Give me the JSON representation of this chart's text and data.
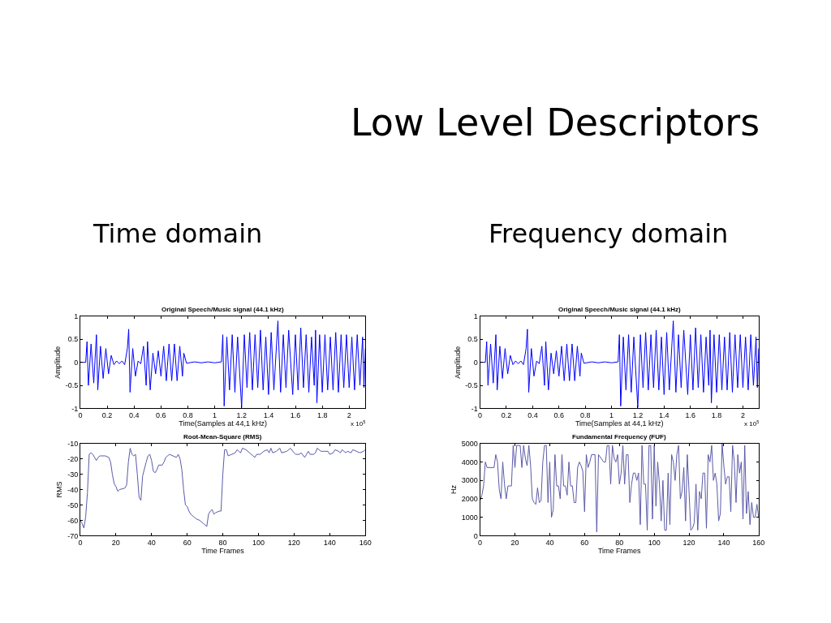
{
  "chart_data": [
    {
      "type": "line",
      "title": "Original Speech/Music signal (44.1 kHz)",
      "xlabel": "Time(Samples at 44,1 kHz)",
      "ylabel": "Amplitude",
      "color": "#0000ff",
      "annotations": [
        "x 10$^{5}$",
        "Low Level Descriptors",
        "Time domain"
      ],
      "x": [
        0,
        0.04,
        0.05,
        0.06,
        0.08,
        0.1,
        0.12,
        0.13,
        0.15,
        0.17,
        0.19,
        0.21,
        0.23,
        0.25,
        0.27,
        0.29,
        0.31,
        0.33,
        0.35,
        0.36,
        0.37,
        0.39,
        0.41,
        0.43,
        0.45,
        0.47,
        0.49,
        0.5,
        0.52,
        0.54,
        0.56,
        0.58,
        0.6,
        0.62,
        0.64,
        0.66,
        0.68,
        0.7,
        0.72,
        0.74,
        0.76,
        0.77,
        0.79,
        0.85,
        0.9,
        0.95,
        1.0,
        1.05,
        1.06,
        1.07,
        1.09,
        1.11,
        1.13,
        1.15,
        1.17,
        1.2,
        1.22,
        1.24,
        1.26,
        1.28,
        1.3,
        1.32,
        1.34,
        1.36,
        1.38,
        1.4,
        1.42,
        1.44,
        1.47,
        1.49,
        1.51,
        1.53,
        1.55,
        1.58,
        1.6,
        1.62,
        1.64,
        1.66,
        1.68,
        1.7,
        1.72,
        1.74,
        1.75,
        1.76,
        1.78,
        1.8,
        1.82,
        1.84,
        1.86,
        1.88,
        1.9,
        1.92,
        1.94,
        1.96,
        1.98,
        2.0,
        2.02,
        2.04,
        2.06,
        2.08,
        2.1,
        2.11,
        2.12
      ],
      "values": [
        0,
        0,
        0.45,
        -0.5,
        0.4,
        -0.45,
        0.6,
        -0.6,
        0.35,
        -0.35,
        0.3,
        -0.25,
        0.15,
        -0.05,
        0.03,
        -0.03,
        0.03,
        -0.05,
        0.3,
        0.72,
        -0.65,
        0.3,
        -0.3,
        0.03,
        -0.03,
        0.35,
        -0.5,
        0.45,
        -0.6,
        0.2,
        -0.25,
        0.25,
        -0.3,
        0.35,
        -0.4,
        0.4,
        -0.4,
        0.4,
        -0.4,
        0.35,
        -0.3,
        0.2,
        -0.02,
        0.01,
        -0.01,
        0.01,
        -0.01,
        0.01,
        0.6,
        -0.95,
        0.55,
        -0.6,
        0.6,
        -0.65,
        0.55,
        -0.98,
        0.6,
        -0.55,
        0.65,
        -0.6,
        0.6,
        -0.55,
        0.7,
        -0.6,
        0.55,
        -0.7,
        0.65,
        -0.6,
        0.9,
        -0.65,
        0.6,
        -0.55,
        0.7,
        -0.7,
        0.6,
        -0.6,
        0.75,
        -0.55,
        0.6,
        -0.65,
        0.55,
        -0.5,
        0.7,
        -0.88,
        0.6,
        -0.65,
        0.6,
        -0.6,
        0.55,
        -0.6,
        0.65,
        -0.65,
        0.6,
        -0.55,
        0.6,
        -0.55,
        0.55,
        -0.6,
        0.6,
        -0.5,
        0.55,
        -0.55,
        0.3
      ],
      "xlim": [
        0,
        2.12
      ],
      "xticks": [
        0,
        0.2,
        0.4,
        0.6,
        0.8,
        1,
        1.2,
        1.4,
        1.6,
        1.8,
        2
      ],
      "ylim": [
        -1,
        1
      ],
      "yticks": [
        -1,
        -0.5,
        0,
        0.5,
        1
      ]
    },
    {
      "type": "line",
      "title": "Root-Mean-Square (RMS)",
      "xlabel": "Time Frames",
      "ylabel": "RMS",
      "color": "#5a5aa8",
      "x": [
        0,
        1,
        2,
        3,
        4,
        5,
        6,
        7,
        8,
        9,
        10,
        11,
        12,
        14,
        16,
        17,
        18,
        19,
        20,
        21,
        22,
        25,
        26,
        27,
        28,
        29,
        30,
        31,
        32,
        33,
        34,
        35,
        37,
        38,
        39,
        40,
        41,
        42,
        43,
        44,
        46,
        47,
        48,
        50,
        52,
        54,
        55,
        56,
        57,
        58,
        59,
        60,
        61,
        62,
        64,
        65,
        67,
        69,
        71,
        72,
        73,
        74,
        75,
        76,
        78,
        79,
        80,
        81,
        82,
        83,
        85,
        87,
        88,
        89,
        90,
        91,
        93,
        95,
        97,
        98,
        99,
        101,
        103,
        105,
        106,
        107,
        108,
        110,
        112,
        113,
        116,
        118,
        120,
        121,
        123,
        124,
        126,
        127,
        128,
        129,
        131,
        132,
        133,
        135,
        137,
        139,
        140,
        142,
        143,
        145,
        146,
        147,
        149,
        150,
        152,
        153,
        155,
        157,
        159,
        160
      ],
      "values": [
        -60,
        -62,
        -65,
        -58,
        -42,
        -17,
        -16,
        -17,
        -19,
        -21,
        -19,
        -18,
        -18,
        -18,
        -19,
        -22,
        -30,
        -36,
        -38,
        -41,
        -40,
        -39,
        -37,
        -22,
        -13,
        -17,
        -18,
        -17,
        -30,
        -45,
        -47,
        -31,
        -22,
        -18,
        -17,
        -21,
        -28,
        -29,
        -27,
        -24,
        -24,
        -22,
        -19,
        -17,
        -18,
        -19,
        -17,
        -20,
        -27,
        -40,
        -50,
        -51,
        -54,
        -56,
        -58,
        -59,
        -60,
        -62,
        -64,
        -56,
        -54,
        -53,
        -56,
        -55,
        -54,
        -54,
        -30,
        -14,
        -14,
        -18,
        -17,
        -16,
        -14,
        -15,
        -16,
        -13,
        -14,
        -16,
        -18,
        -19,
        -17,
        -17,
        -15,
        -14,
        -16,
        -13,
        -16,
        -15,
        -13,
        -16,
        -15,
        -13,
        -16,
        -17,
        -17,
        -16,
        -19,
        -17,
        -15,
        -17,
        -17,
        -16,
        -13,
        -15,
        -15,
        -15,
        -17,
        -16,
        -14,
        -15,
        -16,
        -14,
        -16,
        -15,
        -16,
        -14,
        -15,
        -16,
        -15,
        -14
      ],
      "xlim": [
        0,
        160
      ],
      "xticks": [
        0,
        20,
        40,
        60,
        80,
        100,
        120,
        140,
        160
      ],
      "ylim": [
        -70,
        -10
      ],
      "yticks": [
        -70,
        -60,
        -50,
        -40,
        -30,
        -20,
        -10
      ]
    },
    {
      "type": "line",
      "title": "Original Speech/Music signal (44.1 kHz)",
      "xlabel": "Time(Samples at 44,1 kHz)",
      "ylabel": "Amplitude",
      "color": "#0000ff",
      "annotations": [
        "x 10$^{5}$",
        "Frequency domain"
      ],
      "x": [
        0,
        0.04,
        0.05,
        0.06,
        0.08,
        0.1,
        0.12,
        0.13,
        0.15,
        0.17,
        0.19,
        0.21,
        0.23,
        0.25,
        0.27,
        0.29,
        0.31,
        0.33,
        0.35,
        0.36,
        0.37,
        0.39,
        0.41,
        0.43,
        0.45,
        0.47,
        0.49,
        0.5,
        0.52,
        0.54,
        0.56,
        0.58,
        0.6,
        0.62,
        0.64,
        0.66,
        0.68,
        0.7,
        0.72,
        0.74,
        0.76,
        0.77,
        0.79,
        0.85,
        0.9,
        0.95,
        1.0,
        1.05,
        1.06,
        1.07,
        1.09,
        1.11,
        1.13,
        1.15,
        1.17,
        1.2,
        1.22,
        1.24,
        1.26,
        1.28,
        1.3,
        1.32,
        1.34,
        1.36,
        1.38,
        1.4,
        1.42,
        1.44,
        1.47,
        1.49,
        1.51,
        1.53,
        1.55,
        1.58,
        1.6,
        1.62,
        1.64,
        1.66,
        1.68,
        1.7,
        1.72,
        1.74,
        1.75,
        1.76,
        1.78,
        1.8,
        1.82,
        1.84,
        1.86,
        1.88,
        1.9,
        1.92,
        1.94,
        1.96,
        1.98,
        2.0,
        2.02,
        2.04,
        2.06,
        2.08,
        2.1,
        2.11,
        2.12
      ],
      "values": [
        0,
        0,
        0.45,
        -0.5,
        0.4,
        -0.45,
        0.6,
        -0.6,
        0.35,
        -0.35,
        0.3,
        -0.25,
        0.15,
        -0.05,
        0.03,
        -0.03,
        0.03,
        -0.05,
        0.3,
        0.72,
        -0.65,
        0.3,
        -0.3,
        0.03,
        -0.03,
        0.35,
        -0.5,
        0.45,
        -0.6,
        0.2,
        -0.25,
        0.25,
        -0.3,
        0.35,
        -0.4,
        0.4,
        -0.4,
        0.4,
        -0.4,
        0.35,
        -0.3,
        0.2,
        -0.02,
        0.01,
        -0.01,
        0.01,
        -0.01,
        0.01,
        0.6,
        -0.95,
        0.55,
        -0.6,
        0.6,
        -0.65,
        0.55,
        -0.98,
        0.6,
        -0.55,
        0.65,
        -0.6,
        0.6,
        -0.55,
        0.7,
        -0.6,
        0.55,
        -0.7,
        0.65,
        -0.6,
        0.9,
        -0.65,
        0.6,
        -0.55,
        0.7,
        -0.7,
        0.6,
        -0.6,
        0.75,
        -0.55,
        0.6,
        -0.65,
        0.55,
        -0.5,
        0.7,
        -0.88,
        0.6,
        -0.65,
        0.6,
        -0.6,
        0.55,
        -0.6,
        0.65,
        -0.65,
        0.6,
        -0.55,
        0.6,
        -0.55,
        0.55,
        -0.6,
        0.6,
        -0.5,
        0.55,
        -0.55,
        0.3
      ],
      "xlim": [
        0,
        2.12
      ],
      "xticks": [
        0,
        0.2,
        0.4,
        0.6,
        0.8,
        1,
        1.2,
        1.4,
        1.6,
        1.8,
        2
      ],
      "ylim": [
        -1,
        1
      ],
      "yticks": [
        -1,
        -0.5,
        0,
        0.5,
        1
      ]
    },
    {
      "type": "line",
      "title": "Fundamental Frequency (FUF)",
      "xlabel": "Time Frames",
      "ylabel": "Hz",
      "color": "#5a5aa8",
      "x": [
        0,
        1,
        2,
        3,
        4,
        8,
        9,
        10,
        11,
        12,
        13,
        14,
        15,
        16,
        18,
        19,
        20,
        21,
        23,
        24,
        25,
        26,
        27,
        28,
        29,
        30,
        31,
        32,
        33,
        34,
        35,
        36,
        37,
        38,
        39,
        40,
        41,
        42,
        43,
        44,
        45,
        46,
        47,
        48,
        49,
        50,
        51,
        52,
        53,
        54,
        55,
        56,
        57,
        58,
        59,
        60,
        61,
        62,
        63,
        64,
        66,
        67,
        68,
        71,
        72,
        73,
        74,
        75,
        76,
        77,
        78,
        79,
        80,
        81,
        82,
        83,
        84,
        85,
        86,
        87,
        88,
        89,
        90,
        91,
        92,
        93,
        94,
        95,
        96,
        97,
        98,
        99,
        100,
        101,
        102,
        103,
        104,
        105,
        106,
        107,
        108,
        109,
        110,
        111,
        112,
        113,
        114,
        115,
        116,
        117,
        118,
        119,
        120,
        121,
        122,
        123,
        124,
        125,
        126,
        127,
        128,
        129,
        130,
        131,
        132,
        133,
        134,
        135,
        136,
        137,
        138,
        139,
        140,
        141,
        142,
        143,
        144,
        145,
        146,
        147,
        148,
        149,
        150,
        151,
        152,
        153,
        154,
        155,
        156,
        157,
        158,
        159,
        160
      ],
      "values": [
        1900,
        2200,
        2700,
        4000,
        3700,
        3700,
        4400,
        4000,
        2500,
        2000,
        4000,
        2800,
        2000,
        2700,
        2700,
        4900,
        3700,
        4900,
        4900,
        3700,
        4900,
        4200,
        3800,
        4900,
        3800,
        2000,
        1800,
        1700,
        2600,
        1800,
        1900,
        4000,
        4900,
        4900,
        1800,
        4000,
        1000,
        1400,
        4400,
        2700,
        2700,
        2000,
        4400,
        2700,
        2700,
        2200,
        4000,
        2700,
        2700,
        1800,
        1800,
        3700,
        4000,
        3800,
        3500,
        1300,
        4400,
        3700,
        4000,
        4400,
        4400,
        200,
        4400,
        4000,
        4000,
        4900,
        4900,
        2800,
        4900,
        4200,
        4000,
        4400,
        2800,
        3400,
        4900,
        2800,
        4400,
        4400,
        1800,
        2800,
        3400,
        3400,
        3000,
        3400,
        600,
        4900,
        2800,
        2800,
        300,
        4900,
        4900,
        900,
        4900,
        1600,
        4000,
        2800,
        800,
        3000,
        300,
        300,
        3400,
        600,
        4400,
        4000,
        3000,
        4400,
        4900,
        2000,
        2400,
        3700,
        800,
        4400,
        2400,
        300,
        400,
        700,
        2800,
        300,
        2400,
        2000,
        3400,
        3400,
        400,
        4400,
        4000,
        4900,
        3000,
        3400,
        2800,
        800,
        1200,
        5000,
        3800,
        2800,
        3200,
        3200,
        1300,
        4900,
        4000,
        1800,
        4400,
        3400,
        4000,
        900,
        4900,
        1200,
        2400,
        600,
        1800,
        1000,
        1000,
        1700,
        1000
      ],
      "xlim": [
        0,
        160
      ],
      "xticks": [
        0,
        20,
        40,
        60,
        80,
        100,
        120,
        140,
        160
      ],
      "ylim": [
        0,
        5000
      ],
      "yticks": [
        0,
        1000,
        2000,
        3000,
        4000,
        5000
      ]
    }
  ]
}
